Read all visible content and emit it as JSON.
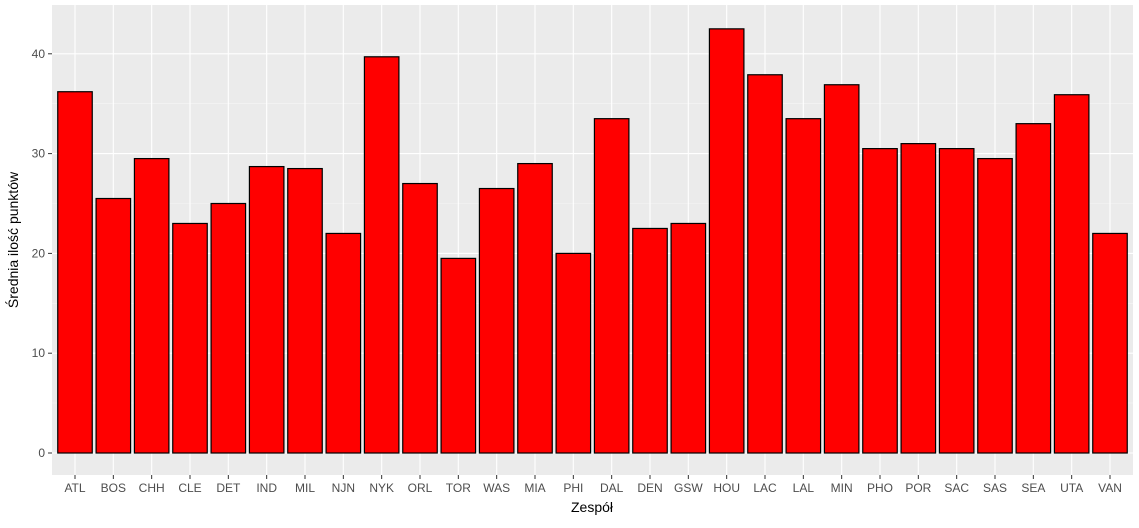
{
  "chart_data": {
    "type": "bar",
    "title": "",
    "xlabel": "Zespół",
    "ylabel": "Średnia ilość punktów",
    "ylim": [
      0,
      44.5
    ],
    "yticks": [
      0,
      10,
      20,
      30,
      40
    ],
    "ytick_labels": [
      "0",
      "10",
      "20",
      "30",
      "40"
    ],
    "grid": true,
    "legend": "none",
    "colors": {
      "bar_fill": "#ff0000",
      "bar_stroke": "#000000",
      "panel_background": "#ebebeb",
      "grid_major": "#ffffff",
      "grid_minor": "#f5f5f5"
    },
    "categories": [
      "ATL",
      "BOS",
      "CHH",
      "CLE",
      "DET",
      "IND",
      "MIL",
      "NJN",
      "NYK",
      "ORL",
      "TOR",
      "WAS",
      "MIA",
      "PHI",
      "DAL",
      "DEN",
      "GSW",
      "HOU",
      "LAC",
      "LAL",
      "MIN",
      "PHO",
      "POR",
      "SAC",
      "SAS",
      "SEA",
      "UTA",
      "VAN"
    ],
    "values": [
      36.2,
      25.5,
      29.5,
      23.0,
      25.0,
      28.7,
      28.5,
      22.0,
      39.7,
      27.0,
      19.5,
      26.5,
      29.0,
      20.0,
      33.5,
      22.5,
      23.0,
      42.5,
      37.9,
      33.5,
      36.9,
      30.5,
      31.0,
      30.5,
      29.5,
      33.0,
      35.9,
      22.0
    ]
  }
}
